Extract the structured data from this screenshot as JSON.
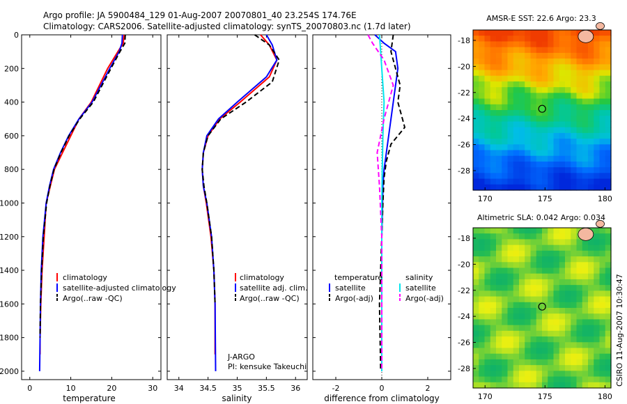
{
  "header": {
    "line1": "Argo profile: JA 5900484_129 01-Aug-2007 20070801_40 23.254S 174.76E",
    "line2": "Climatology: CARS2006. Satellite-adjusted climatology: synTS_20070803.nc (1.7d later)"
  },
  "side_label": "CSIRO 11-Aug-2007 10:30:47",
  "colors": {
    "climatology": "#ff0000",
    "satellite": "#0000ff",
    "argo": "#000000",
    "sat_sal": "#00e5ee",
    "argo_sal": "#ff00ff"
  },
  "panels": {
    "temperature": {
      "xlabel": "temperature",
      "legend": [
        "climatology",
        "satellite-adjusted climatology",
        "Argo(..raw -QC)"
      ]
    },
    "salinity": {
      "xlabel": "salinity",
      "legend": [
        "climatology",
        "satellite adj. clim.",
        "Argo(..raw -QC)"
      ],
      "credit1": "J-ARGO",
      "credit2": "PI: kensuke Takeuchi"
    },
    "difference": {
      "xlabel": "difference from climatology",
      "legend_left_title": "temperature",
      "legend_left": [
        "satellite",
        "Argo(-adj)"
      ],
      "legend_right_title": "salinity",
      "legend_right": [
        "satellite",
        "Argo(-adj)"
      ]
    },
    "sst_map": {
      "title": "AMSR-E SST: 22.6 Argo: 23.3"
    },
    "sla_map": {
      "title": "Altimetric SLA: 0.042 Argo: 0.034"
    }
  },
  "chart_data": [
    {
      "type": "line",
      "name": "temperature profile",
      "xlabel": "temperature",
      "ylabel": "",
      "xlim": [
        -2,
        32
      ],
      "ylim": [
        0,
        2050
      ],
      "y_reversed": true,
      "xticks": [
        0,
        10,
        20,
        30
      ],
      "yticks": [
        0,
        200,
        400,
        600,
        800,
        1000,
        1200,
        1400,
        1600,
        1800,
        2000
      ],
      "series": [
        {
          "name": "climatology",
          "color": "#ff0000",
          "x": [
            23,
            22.8,
            21.5,
            19,
            15,
            12,
            10,
            8,
            6,
            5,
            4,
            3.5,
            3,
            2.7,
            2.5,
            2.5
          ],
          "y": [
            0,
            50,
            100,
            200,
            400,
            500,
            600,
            700,
            800,
            900,
            1000,
            1200,
            1400,
            1600,
            1800,
            1900
          ]
        },
        {
          "name": "satellite-adjusted climatology",
          "color": "#0000ff",
          "x": [
            22.6,
            22.5,
            21.8,
            19.5,
            15.2,
            12,
            9.5,
            7.5,
            5.8,
            4.8,
            4,
            3.2,
            2.8,
            2.6,
            2.5,
            2.4
          ],
          "y": [
            0,
            50,
            100,
            200,
            400,
            500,
            600,
            700,
            800,
            900,
            1000,
            1200,
            1400,
            1600,
            1800,
            2000
          ]
        },
        {
          "name": "Argo(..raw -QC)",
          "color": "#000000",
          "x": [
            23.3,
            23.2,
            22,
            19.8,
            15.5,
            12.2,
            9.6,
            7.6,
            5.9,
            4.9,
            4.1,
            3.3,
            2.9,
            2.6,
            2.5
          ],
          "y": [
            0,
            50,
            100,
            200,
            400,
            500,
            600,
            700,
            800,
            900,
            1000,
            1200,
            1400,
            1600,
            1800
          ]
        }
      ]
    },
    {
      "type": "line",
      "name": "salinity profile",
      "xlabel": "salinity",
      "xlim": [
        33.8,
        36.2
      ],
      "ylim": [
        0,
        2050
      ],
      "y_reversed": true,
      "xticks": [
        34,
        34.5,
        35,
        35.5,
        36
      ],
      "series": [
        {
          "name": "climatology",
          "color": "#ff0000",
          "x": [
            35.4,
            35.55,
            35.68,
            35.55,
            35.05,
            34.7,
            34.5,
            34.42,
            34.4,
            34.42,
            34.47,
            34.55,
            34.6,
            34.62,
            34.62
          ],
          "y": [
            0,
            60,
            150,
            250,
            400,
            500,
            600,
            700,
            800,
            900,
            1000,
            1200,
            1400,
            1600,
            1900
          ]
        },
        {
          "name": "satellite adj. clim.",
          "color": "#0000ff",
          "x": [
            35.5,
            35.6,
            35.68,
            35.5,
            35,
            34.68,
            34.48,
            34.42,
            34.4,
            34.42,
            34.48,
            34.56,
            34.6,
            34.62,
            34.63
          ],
          "y": [
            0,
            60,
            150,
            250,
            400,
            500,
            600,
            700,
            800,
            900,
            1000,
            1200,
            1400,
            1600,
            2000
          ]
        },
        {
          "name": "Argo(..raw -QC)",
          "color": "#000000",
          "x": [
            35.3,
            35.55,
            35.72,
            35.6,
            35.15,
            34.72,
            34.5,
            34.42,
            34.4,
            34.43,
            34.48,
            34.56,
            34.6,
            34.62
          ],
          "y": [
            0,
            60,
            150,
            280,
            400,
            500,
            600,
            700,
            800,
            900,
            1000,
            1200,
            1400,
            1600
          ]
        }
      ]
    },
    {
      "type": "line",
      "name": "difference from climatology",
      "xlabel": "difference from climatology",
      "xlim": [
        -3,
        3
      ],
      "ylim": [
        0,
        2050
      ],
      "y_reversed": true,
      "xticks": [
        -2,
        0,
        2
      ],
      "series": [
        {
          "name": "temperature satellite",
          "color": "#0000ff",
          "x": [
            -0.3,
            0.1,
            0.6,
            0.7,
            0.5,
            0.4,
            0.3,
            0.2,
            0.1,
            0.05,
            0.0,
            0.0
          ],
          "y": [
            0,
            50,
            100,
            200,
            400,
            500,
            600,
            700,
            800,
            900,
            1200,
            2000
          ]
        },
        {
          "name": "temperature Argo(-adj)",
          "color": "#000000",
          "x": [
            0.5,
            0.4,
            0.6,
            0.8,
            0.7,
            1.0,
            0.4,
            0.2,
            0.1,
            0.05,
            0.0,
            -0.1,
            -0.05
          ],
          "y": [
            0,
            100,
            200,
            300,
            400,
            550,
            650,
            750,
            850,
            1000,
            1200,
            1600,
            2000
          ]
        },
        {
          "name": "salinity satellite",
          "color": "#00e5ee",
          "x": [
            -0.1,
            -0.05,
            0.0,
            0.1,
            0.05,
            0.02,
            0.0,
            0.0
          ],
          "y": [
            0,
            100,
            200,
            400,
            600,
            800,
            1000,
            2000
          ]
        },
        {
          "name": "salinity Argo(-adj)",
          "color": "#ff00ff",
          "x": [
            -0.6,
            -0.4,
            0.1,
            0.5,
            0.1,
            -0.2,
            -0.1,
            0.0,
            0.0
          ],
          "y": [
            0,
            50,
            150,
            300,
            500,
            700,
            900,
            1200,
            2000
          ]
        }
      ]
    },
    {
      "type": "heatmap",
      "name": "AMSR-E SST map",
      "title": "AMSR-E SST: 22.6 Argo: 23.3",
      "xlim": [
        169,
        180.5
      ],
      "ylim": [
        -29.5,
        -17.2
      ],
      "xticks": [
        170,
        175,
        180
      ],
      "yticks": [
        -18,
        -20,
        -22,
        -24,
        -26,
        -28
      ],
      "argo_point": {
        "lon": 174.76,
        "lat": -23.254
      }
    },
    {
      "type": "heatmap",
      "name": "Altimetric SLA map",
      "title": "Altimetric SLA: 0.042 Argo: 0.034",
      "xlim": [
        169,
        180.5
      ],
      "ylim": [
        -29.5,
        -17.2
      ],
      "xticks": [
        170,
        175,
        180
      ],
      "yticks": [
        -18,
        -20,
        -22,
        -24,
        -26,
        -28
      ],
      "argo_point": {
        "lon": 174.76,
        "lat": -23.254
      }
    }
  ]
}
